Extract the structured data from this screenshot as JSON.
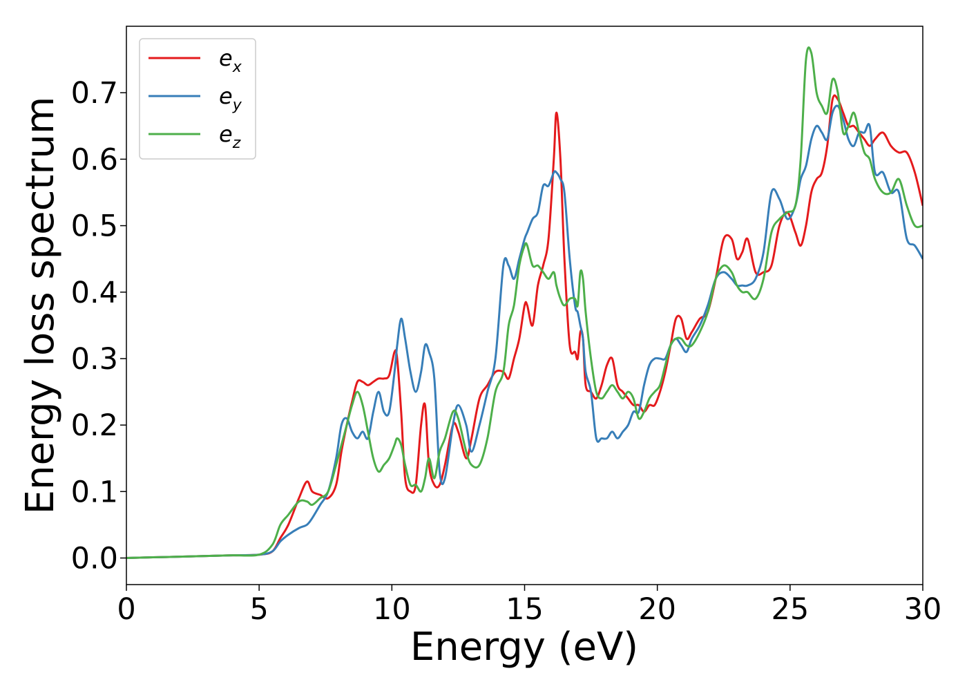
{
  "chart_data": {
    "type": "line",
    "title": "",
    "xlabel": "Energy (eV)",
    "ylabel": "Energy loss spectrum",
    "xlim": [
      0,
      30
    ],
    "ylim": [
      -0.04,
      0.8
    ],
    "xticks": [
      0,
      5,
      10,
      15,
      20,
      25,
      30
    ],
    "xtick_labels": [
      "0",
      "5",
      "10",
      "15",
      "20",
      "25",
      "30"
    ],
    "yticks": [
      0.0,
      0.1,
      0.2,
      0.3,
      0.4,
      0.5,
      0.6,
      0.7
    ],
    "ytick_labels": [
      "0.0",
      "0.1",
      "0.2",
      "0.3",
      "0.4",
      "0.5",
      "0.6",
      "0.7"
    ],
    "grid": false,
    "legend_position": "top-left",
    "series": [
      {
        "name": "e_x",
        "label_base": "e",
        "label_sub": "x",
        "color": "#e41a1c",
        "x": [
          0,
          1,
          2,
          3,
          4,
          5,
          5.5,
          5.8,
          6.1,
          6.5,
          6.8,
          7.0,
          7.3,
          7.6,
          7.9,
          8.1,
          8.3,
          8.5,
          8.7,
          8.9,
          9.1,
          9.3,
          9.5,
          9.7,
          9.9,
          10.1,
          10.2,
          10.35,
          10.5,
          10.7,
          10.9,
          11.1,
          11.25,
          11.4,
          11.6,
          11.8,
          12.0,
          12.3,
          12.5,
          12.8,
          13.0,
          13.3,
          13.6,
          13.9,
          14.2,
          14.4,
          14.6,
          14.8,
          15.0,
          15.1,
          15.3,
          15.5,
          15.7,
          15.9,
          16.1,
          16.2,
          16.35,
          16.5,
          16.7,
          16.9,
          17.0,
          17.1,
          17.2,
          17.3,
          17.5,
          17.7,
          17.9,
          18.1,
          18.3,
          18.5,
          18.7,
          18.9,
          19.1,
          19.3,
          19.5,
          19.7,
          19.9,
          20.1,
          20.3,
          20.5,
          20.7,
          20.9,
          21.1,
          21.3,
          21.6,
          21.9,
          22.2,
          22.5,
          22.8,
          23.0,
          23.2,
          23.4,
          23.7,
          24.0,
          24.3,
          24.6,
          24.9,
          25.2,
          25.4,
          25.6,
          25.8,
          26.0,
          26.2,
          26.4,
          26.6,
          26.8,
          27.0,
          27.2,
          27.4,
          27.6,
          27.8,
          28.0,
          28.2,
          28.5,
          28.8,
          29.1,
          29.4,
          29.7,
          30.0
        ],
        "y": [
          0.0,
          0.001,
          0.002,
          0.003,
          0.004,
          0.005,
          0.01,
          0.03,
          0.05,
          0.09,
          0.115,
          0.1,
          0.095,
          0.09,
          0.11,
          0.16,
          0.2,
          0.235,
          0.265,
          0.265,
          0.26,
          0.265,
          0.27,
          0.27,
          0.275,
          0.31,
          0.3,
          0.22,
          0.12,
          0.1,
          0.11,
          0.2,
          0.23,
          0.14,
          0.11,
          0.11,
          0.14,
          0.2,
          0.19,
          0.15,
          0.18,
          0.24,
          0.26,
          0.28,
          0.28,
          0.27,
          0.3,
          0.33,
          0.38,
          0.38,
          0.35,
          0.41,
          0.44,
          0.48,
          0.6,
          0.67,
          0.6,
          0.45,
          0.32,
          0.31,
          0.3,
          0.34,
          0.33,
          0.26,
          0.25,
          0.24,
          0.26,
          0.29,
          0.3,
          0.26,
          0.25,
          0.24,
          0.23,
          0.23,
          0.22,
          0.23,
          0.23,
          0.25,
          0.28,
          0.32,
          0.36,
          0.36,
          0.33,
          0.34,
          0.36,
          0.37,
          0.42,
          0.48,
          0.48,
          0.45,
          0.46,
          0.48,
          0.43,
          0.43,
          0.44,
          0.5,
          0.52,
          0.49,
          0.47,
          0.5,
          0.55,
          0.57,
          0.58,
          0.62,
          0.69,
          0.69,
          0.67,
          0.65,
          0.65,
          0.64,
          0.63,
          0.62,
          0.63,
          0.64,
          0.62,
          0.61,
          0.61,
          0.58,
          0.53
        ],
        "label": "e_x"
      },
      {
        "name": "e_y",
        "label_base": "e",
        "label_sub": "y",
        "color": "#377eb8",
        "x": [
          0,
          1,
          2,
          3,
          4,
          5,
          5.5,
          5.8,
          6.1,
          6.5,
          6.8,
          7.0,
          7.3,
          7.6,
          7.9,
          8.1,
          8.3,
          8.5,
          8.7,
          8.9,
          9.1,
          9.3,
          9.5,
          9.7,
          9.9,
          10.1,
          10.2,
          10.35,
          10.5,
          10.7,
          10.9,
          11.1,
          11.25,
          11.4,
          11.6,
          11.8,
          12.0,
          12.3,
          12.5,
          12.8,
          13.0,
          13.3,
          13.6,
          13.9,
          14.2,
          14.4,
          14.6,
          14.8,
          15.0,
          15.1,
          15.3,
          15.5,
          15.7,
          15.9,
          16.1,
          16.2,
          16.35,
          16.5,
          16.7,
          16.9,
          17.0,
          17.1,
          17.2,
          17.3,
          17.5,
          17.7,
          17.9,
          18.1,
          18.3,
          18.5,
          18.7,
          18.9,
          19.1,
          19.3,
          19.5,
          19.7,
          19.9,
          20.1,
          20.3,
          20.5,
          20.7,
          20.9,
          21.1,
          21.3,
          21.6,
          21.9,
          22.2,
          22.5,
          22.8,
          23.0,
          23.2,
          23.4,
          23.7,
          24.0,
          24.3,
          24.6,
          24.9,
          25.2,
          25.4,
          25.6,
          25.8,
          26.0,
          26.2,
          26.4,
          26.6,
          26.8,
          27.0,
          27.2,
          27.4,
          27.6,
          27.8,
          28.0,
          28.2,
          28.5,
          28.8,
          29.1,
          29.4,
          29.7,
          30.0
        ],
        "y": [
          0.0,
          0.001,
          0.002,
          0.003,
          0.004,
          0.005,
          0.01,
          0.025,
          0.035,
          0.045,
          0.05,
          0.06,
          0.08,
          0.1,
          0.15,
          0.2,
          0.21,
          0.19,
          0.18,
          0.19,
          0.18,
          0.22,
          0.25,
          0.22,
          0.22,
          0.28,
          0.32,
          0.36,
          0.33,
          0.28,
          0.25,
          0.28,
          0.32,
          0.31,
          0.27,
          0.13,
          0.12,
          0.2,
          0.23,
          0.2,
          0.16,
          0.2,
          0.25,
          0.3,
          0.44,
          0.44,
          0.42,
          0.45,
          0.48,
          0.49,
          0.51,
          0.52,
          0.56,
          0.56,
          0.58,
          0.58,
          0.57,
          0.55,
          0.45,
          0.38,
          0.37,
          0.35,
          0.33,
          0.28,
          0.25,
          0.18,
          0.18,
          0.18,
          0.19,
          0.18,
          0.19,
          0.2,
          0.22,
          0.22,
          0.26,
          0.29,
          0.3,
          0.3,
          0.3,
          0.32,
          0.33,
          0.32,
          0.31,
          0.33,
          0.35,
          0.38,
          0.42,
          0.43,
          0.42,
          0.41,
          0.41,
          0.41,
          0.42,
          0.46,
          0.55,
          0.54,
          0.51,
          0.53,
          0.57,
          0.59,
          0.63,
          0.65,
          0.64,
          0.63,
          0.67,
          0.68,
          0.66,
          0.63,
          0.62,
          0.64,
          0.64,
          0.65,
          0.58,
          0.58,
          0.55,
          0.55,
          0.48,
          0.47,
          0.45
        ],
        "label": "e_y"
      },
      {
        "name": "e_z",
        "label_base": "e",
        "label_sub": "z",
        "color": "#4daf4a",
        "x": [
          0,
          1,
          2,
          3,
          4,
          5,
          5.5,
          5.8,
          6.1,
          6.5,
          6.8,
          7.0,
          7.3,
          7.6,
          7.9,
          8.1,
          8.3,
          8.5,
          8.7,
          8.9,
          9.1,
          9.3,
          9.5,
          9.7,
          9.9,
          10.1,
          10.2,
          10.35,
          10.5,
          10.7,
          10.9,
          11.1,
          11.25,
          11.4,
          11.6,
          11.8,
          12.0,
          12.3,
          12.5,
          12.8,
          13.0,
          13.3,
          13.6,
          13.9,
          14.2,
          14.4,
          14.6,
          14.8,
          15.0,
          15.1,
          15.3,
          15.5,
          15.7,
          15.9,
          16.1,
          16.2,
          16.35,
          16.5,
          16.7,
          16.9,
          17.0,
          17.1,
          17.2,
          17.3,
          17.5,
          17.7,
          17.9,
          18.1,
          18.3,
          18.5,
          18.7,
          18.9,
          19.1,
          19.3,
          19.5,
          19.7,
          19.9,
          20.1,
          20.3,
          20.5,
          20.7,
          20.9,
          21.1,
          21.3,
          21.6,
          21.9,
          22.2,
          22.5,
          22.8,
          23.0,
          23.2,
          23.4,
          23.7,
          24.0,
          24.3,
          24.6,
          24.9,
          25.2,
          25.4,
          25.6,
          25.8,
          26.0,
          26.2,
          26.4,
          26.6,
          26.8,
          27.0,
          27.2,
          27.4,
          27.6,
          27.8,
          28.0,
          28.2,
          28.5,
          28.8,
          29.1,
          29.4,
          29.7,
          30.0
        ],
        "y": [
          0.0,
          0.001,
          0.002,
          0.003,
          0.004,
          0.005,
          0.02,
          0.05,
          0.065,
          0.085,
          0.085,
          0.08,
          0.09,
          0.1,
          0.14,
          0.17,
          0.2,
          0.23,
          0.25,
          0.23,
          0.19,
          0.15,
          0.13,
          0.14,
          0.15,
          0.17,
          0.18,
          0.17,
          0.14,
          0.11,
          0.11,
          0.1,
          0.12,
          0.15,
          0.12,
          0.16,
          0.18,
          0.22,
          0.21,
          0.16,
          0.14,
          0.14,
          0.18,
          0.25,
          0.28,
          0.35,
          0.38,
          0.44,
          0.47,
          0.47,
          0.44,
          0.44,
          0.43,
          0.42,
          0.43,
          0.41,
          0.39,
          0.38,
          0.39,
          0.39,
          0.38,
          0.43,
          0.42,
          0.37,
          0.3,
          0.25,
          0.24,
          0.25,
          0.26,
          0.25,
          0.24,
          0.25,
          0.24,
          0.21,
          0.22,
          0.24,
          0.25,
          0.26,
          0.29,
          0.32,
          0.33,
          0.33,
          0.32,
          0.32,
          0.34,
          0.37,
          0.42,
          0.44,
          0.43,
          0.41,
          0.4,
          0.4,
          0.39,
          0.42,
          0.49,
          0.51,
          0.52,
          0.53,
          0.6,
          0.75,
          0.76,
          0.7,
          0.68,
          0.67,
          0.72,
          0.7,
          0.64,
          0.65,
          0.67,
          0.64,
          0.61,
          0.6,
          0.57,
          0.55,
          0.55,
          0.57,
          0.53,
          0.5,
          0.5
        ],
        "label": "e_z"
      }
    ]
  }
}
